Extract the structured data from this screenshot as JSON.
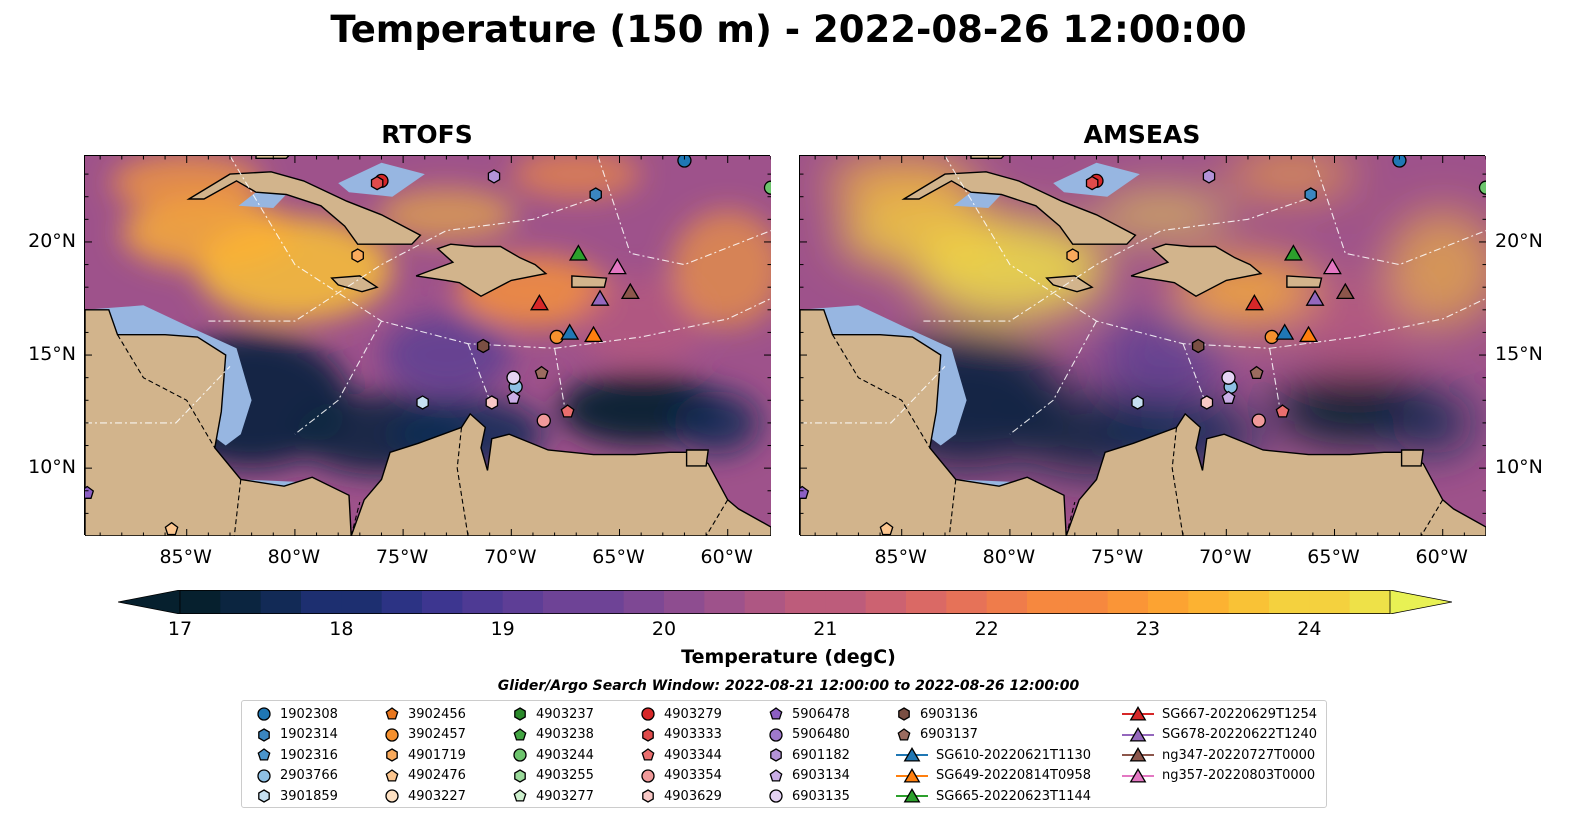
{
  "title": "Temperature (150 m) - 2022-08-26 12:00:00",
  "panels": [
    {
      "title": "RTOFS",
      "style": "rtofs"
    },
    {
      "title": "AMSEAS",
      "style": "amseas"
    }
  ],
  "map_extent": {
    "lon_min": -89.7,
    "lon_max": -58.0,
    "lat_min": 7.0,
    "lat_max": 23.8
  },
  "lon_ticks": [
    {
      "value": -85,
      "label": "85°W"
    },
    {
      "value": -80,
      "label": "80°W"
    },
    {
      "value": -75,
      "label": "75°W"
    },
    {
      "value": -70,
      "label": "70°W"
    },
    {
      "value": -65,
      "label": "65°W"
    },
    {
      "value": -60,
      "label": "60°W"
    }
  ],
  "lat_ticks": [
    {
      "value": 20,
      "label": "20°N"
    },
    {
      "value": 15,
      "label": "15°N"
    },
    {
      "value": 10,
      "label": "10°N"
    }
  ],
  "colorbar": {
    "label": "Temperature (degC)",
    "min": 16.75,
    "max": 24.5,
    "ticks": [
      "17",
      "18",
      "19",
      "20",
      "21",
      "22",
      "23",
      "24"
    ],
    "colors": [
      "#06202e",
      "#0b2540",
      "#122a56",
      "#1d2f70",
      "#2c3384",
      "#3d3690",
      "#4e3a94",
      "#5e3e96",
      "#6e4396",
      "#7e4894",
      "#8e4d90",
      "#9e528b",
      "#ae5783",
      "#bd5c7b",
      "#cc6271",
      "#da6965",
      "#e67258",
      "#ef7c4b",
      "#f6883f",
      "#fa9537",
      "#fca332",
      "#fcb232",
      "#f9c236",
      "#f4d13e",
      "#eee148",
      "#e8f154"
    ],
    "extend_low": "#06202e",
    "extend_high": "#e8f154"
  },
  "search_window": "Glider/Argo Search Window: 2022-08-21 12:00:00 to 2022-08-26 12:00:00",
  "land_color": "#d2b48c",
  "shelf_color": "#97b6e1",
  "legend": [
    {
      "label": "1902308",
      "marker": "circle",
      "color": "#1f77b4"
    },
    {
      "label": "1902314",
      "marker": "hexagon",
      "color": "#3a86c0"
    },
    {
      "label": "1902316",
      "marker": "pentagon",
      "color": "#4a95cc"
    },
    {
      "label": "2903766",
      "marker": "circle",
      "color": "#8ec0e4"
    },
    {
      "label": "3901859",
      "marker": "hexagon",
      "color": "#c6e0f1"
    },
    {
      "label": "3902456",
      "marker": "pentagon",
      "color": "#e8761d"
    },
    {
      "label": "3902457",
      "marker": "circle",
      "color": "#f5902e"
    },
    {
      "label": "4901719",
      "marker": "hexagon",
      "color": "#f9aa5c"
    },
    {
      "label": "4902476",
      "marker": "pentagon",
      "color": "#fcc68f"
    },
    {
      "label": "4903227",
      "marker": "circle",
      "color": "#fde0c2"
    },
    {
      "label": "4903237",
      "marker": "hexagon",
      "color": "#2b8a2b"
    },
    {
      "label": "4903238",
      "marker": "pentagon",
      "color": "#43a543"
    },
    {
      "label": "4903244",
      "marker": "circle",
      "color": "#6dc46d"
    },
    {
      "label": "4903255",
      "marker": "hexagon",
      "color": "#9ad99a"
    },
    {
      "label": "4903277",
      "marker": "pentagon",
      "color": "#cdefcd"
    },
    {
      "label": "4903279",
      "marker": "circle",
      "color": "#d62728"
    },
    {
      "label": "4903333",
      "marker": "hexagon",
      "color": "#e04b4b"
    },
    {
      "label": "4903344",
      "marker": "pentagon",
      "color": "#ea6e6e"
    },
    {
      "label": "4903354",
      "marker": "circle",
      "color": "#f09a9a"
    },
    {
      "label": "4903629",
      "marker": "hexagon",
      "color": "#f8c8c6"
    },
    {
      "label": "5906478",
      "marker": "pentagon",
      "color": "#8c5fc3"
    },
    {
      "label": "5906480",
      "marker": "circle",
      "color": "#9f78cc"
    },
    {
      "label": "6901182",
      "marker": "hexagon",
      "color": "#b393d8"
    },
    {
      "label": "6903134",
      "marker": "pentagon",
      "color": "#caaee6"
    },
    {
      "label": "6903135",
      "marker": "circle",
      "color": "#e4d2f3"
    },
    {
      "label": "6903136",
      "marker": "hexagon",
      "color": "#7a4f43"
    },
    {
      "label": "6903137",
      "marker": "pentagon",
      "color": "#9b6b5f"
    },
    {
      "label": "SG610-20220621T1130",
      "marker": "triangle-line",
      "color": "#1f77b4"
    },
    {
      "label": "SG649-20220814T0958",
      "marker": "triangle-line",
      "color": "#ff7f0e"
    },
    {
      "label": "SG665-20220623T1144",
      "marker": "triangle-line",
      "color": "#2ca02c"
    },
    {
      "label": "SG667-20220629T1254",
      "marker": "triangle-line",
      "color": "#d62728"
    },
    {
      "label": "SG678-20220622T1240",
      "marker": "triangle-line",
      "color": "#9467bd"
    },
    {
      "label": "ng347-20220727T0000",
      "marker": "triangle-line",
      "color": "#8c564b"
    },
    {
      "label": "ng357-20220803T0000",
      "marker": "triangle-line",
      "color": "#e377c2"
    }
  ],
  "platforms": [
    {
      "id": "1902308",
      "lon": -62.0,
      "lat": 23.6,
      "marker": "circle",
      "color": "#1f77b4"
    },
    {
      "id": "1902314",
      "lon": -66.1,
      "lat": 22.1,
      "marker": "hexagon",
      "color": "#3a86c0"
    },
    {
      "id": "2903766",
      "lon": -69.8,
      "lat": 13.6,
      "marker": "circle",
      "color": "#8ec0e4"
    },
    {
      "id": "3901859",
      "lon": -74.1,
      "lat": 12.9,
      "marker": "hexagon",
      "color": "#c6e0f1"
    },
    {
      "id": "3902457",
      "lon": -67.9,
      "lat": 15.8,
      "marker": "circle",
      "color": "#f5902e"
    },
    {
      "id": "4901719",
      "lon": -77.1,
      "lat": 19.4,
      "marker": "hexagon",
      "color": "#f9aa5c"
    },
    {
      "id": "4902476",
      "lon": -85.7,
      "lat": 7.3,
      "marker": "pentagon",
      "color": "#fcc68f"
    },
    {
      "id": "4903244",
      "lon": -58.0,
      "lat": 22.4,
      "marker": "circle",
      "color": "#6dc46d"
    },
    {
      "id": "4903279",
      "lon": -76.0,
      "lat": 22.7,
      "marker": "circle",
      "color": "#d62728"
    },
    {
      "id": "4903333",
      "lon": -76.2,
      "lat": 22.6,
      "marker": "hexagon",
      "color": "#e04b4b"
    },
    {
      "id": "4903344",
      "lon": -67.4,
      "lat": 12.5,
      "marker": "pentagon",
      "color": "#ea6e6e"
    },
    {
      "id": "4903354",
      "lon": -68.5,
      "lat": 12.1,
      "marker": "circle",
      "color": "#f09a9a"
    },
    {
      "id": "4903629",
      "lon": -70.9,
      "lat": 12.9,
      "marker": "hexagon",
      "color": "#f8c8c6"
    },
    {
      "id": "5906478",
      "lon": -89.6,
      "lat": 8.9,
      "marker": "pentagon",
      "color": "#8c5fc3"
    },
    {
      "id": "6901182",
      "lon": -70.8,
      "lat": 22.9,
      "marker": "hexagon",
      "color": "#b393d8"
    },
    {
      "id": "6903134",
      "lon": -69.9,
      "lat": 13.1,
      "marker": "pentagon",
      "color": "#caaee6"
    },
    {
      "id": "6903135",
      "lon": -69.9,
      "lat": 14.0,
      "marker": "circle",
      "color": "#e4d2f3"
    },
    {
      "id": "6903136",
      "lon": -71.3,
      "lat": 15.4,
      "marker": "hexagon",
      "color": "#7a4f43"
    },
    {
      "id": "6903137",
      "lon": -68.6,
      "lat": 14.2,
      "marker": "pentagon",
      "color": "#9b6b5f"
    },
    {
      "id": "SG610-20220621T1130",
      "lon": -67.3,
      "lat": 16.0,
      "marker": "triangle",
      "color": "#1f77b4"
    },
    {
      "id": "SG649-20220814T0958",
      "lon": -66.2,
      "lat": 15.9,
      "marker": "triangle",
      "color": "#ff7f0e"
    },
    {
      "id": "SG665-20220623T1144",
      "lon": -66.9,
      "lat": 19.5,
      "marker": "triangle",
      "color": "#2ca02c"
    },
    {
      "id": "SG667-20220629T1254",
      "lon": -68.7,
      "lat": 17.3,
      "marker": "triangle",
      "color": "#d62728"
    },
    {
      "id": "SG678-20220622T1240",
      "lon": -65.9,
      "lat": 17.5,
      "marker": "triangle",
      "color": "#9467bd"
    },
    {
      "id": "ng347-20220727T0000",
      "lon": -64.5,
      "lat": 17.8,
      "marker": "triangle",
      "color": "#8c564b"
    },
    {
      "id": "ng357-20220803T0000",
      "lon": -65.1,
      "lat": 18.9,
      "marker": "triangle",
      "color": "#e377c2"
    }
  ]
}
